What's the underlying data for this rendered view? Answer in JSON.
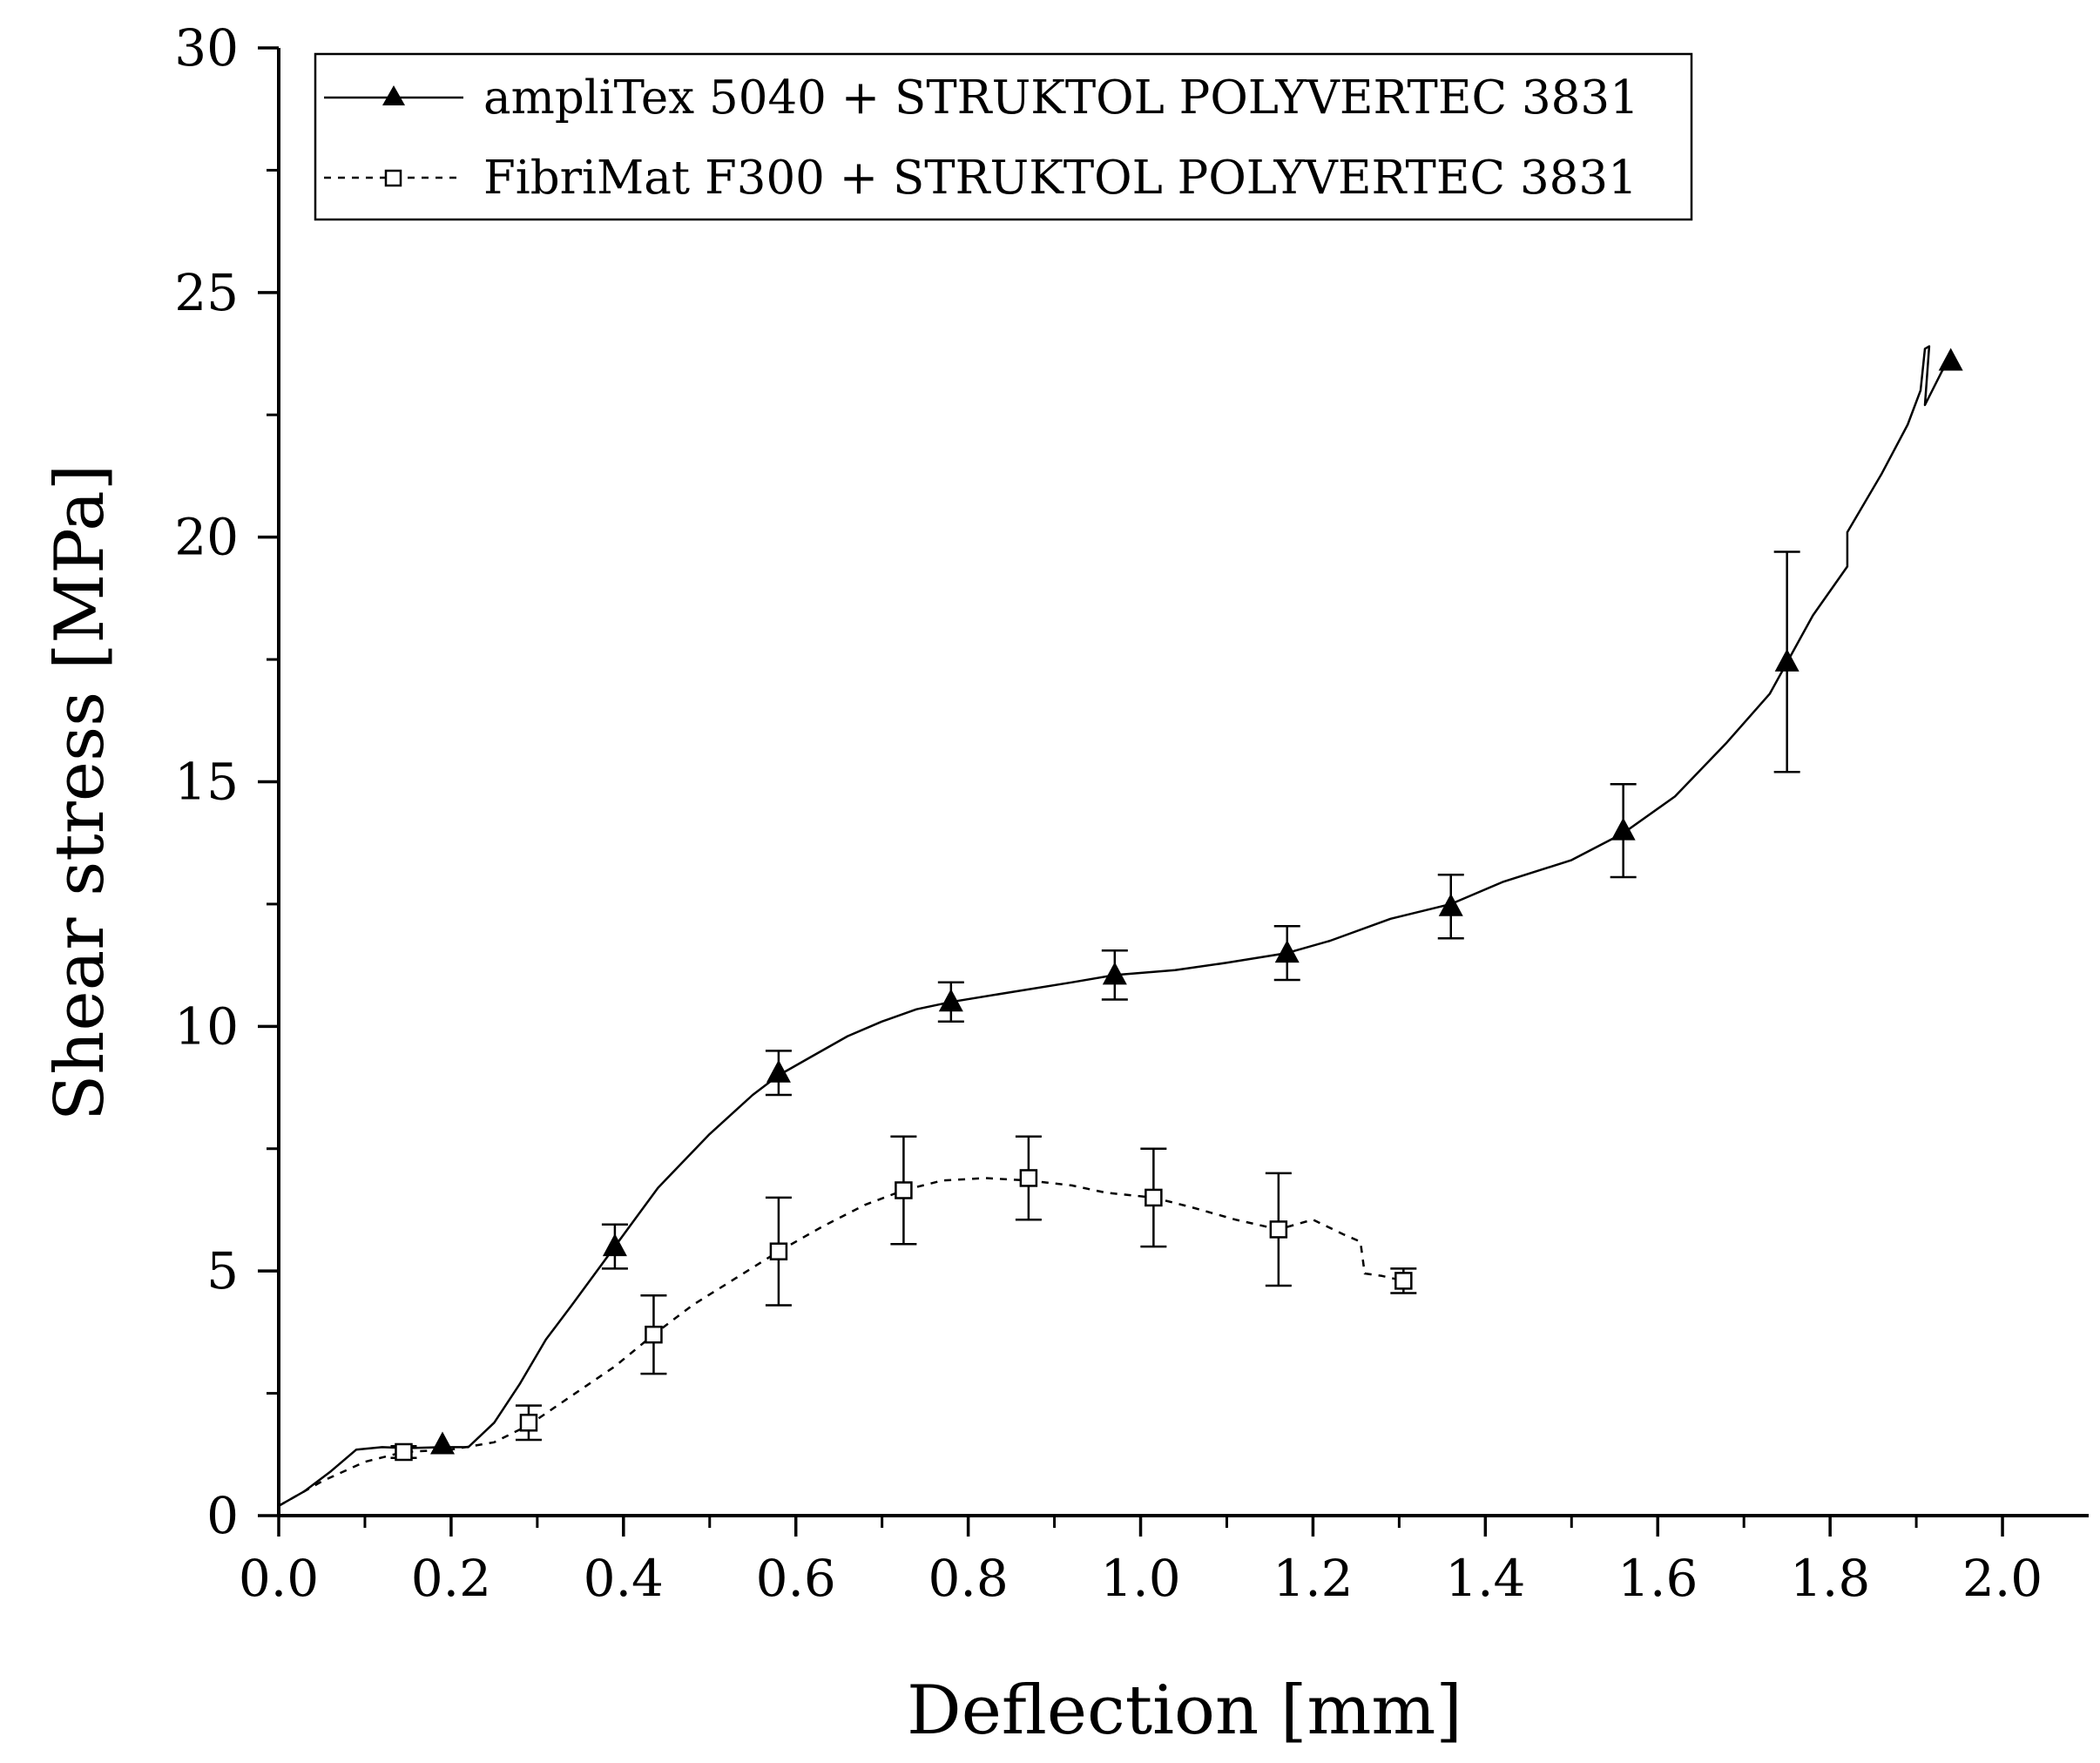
{
  "chart_data": {
    "type": "line",
    "title": "",
    "xlabel": "Deflection [mm]",
    "ylabel": "Shear stress [MPa]",
    "xlim": [
      0.0,
      2.1
    ],
    "ylim": [
      0,
      30
    ],
    "xticks": [
      "0.0",
      "0.2",
      "0.4",
      "0.6",
      "0.8",
      "1.0",
      "1.2",
      "1.4",
      "1.6",
      "1.8",
      "2.0"
    ],
    "yticks": [
      "0",
      "5",
      "10",
      "15",
      "20",
      "25",
      "30"
    ],
    "grid": false,
    "legend_position": "top-left",
    "series": [
      {
        "name": "ampliTex 5040 + STRUKTOL POLYVERTEC 3831",
        "line_style": "solid",
        "marker": "filled-triangle",
        "curve": [
          [
            0.0,
            0.2
          ],
          [
            0.03,
            0.5
          ],
          [
            0.06,
            0.9
          ],
          [
            0.09,
            1.35
          ],
          [
            0.12,
            1.4
          ],
          [
            0.15,
            1.38
          ],
          [
            0.19,
            1.4
          ],
          [
            0.22,
            1.4
          ],
          [
            0.25,
            1.9
          ],
          [
            0.28,
            2.7
          ],
          [
            0.31,
            3.6
          ],
          [
            0.34,
            4.3
          ],
          [
            0.39,
            5.5
          ],
          [
            0.44,
            6.7
          ],
          [
            0.5,
            7.8
          ],
          [
            0.55,
            8.6
          ],
          [
            0.58,
            9.0
          ],
          [
            0.62,
            9.4
          ],
          [
            0.66,
            9.8
          ],
          [
            0.7,
            10.1
          ],
          [
            0.74,
            10.35
          ],
          [
            0.78,
            10.5
          ],
          [
            0.85,
            10.7
          ],
          [
            0.92,
            10.9
          ],
          [
            0.97,
            11.05
          ],
          [
            1.04,
            11.15
          ],
          [
            1.1,
            11.3
          ],
          [
            1.17,
            11.5
          ],
          [
            1.22,
            11.75
          ],
          [
            1.29,
            12.2
          ],
          [
            1.36,
            12.5
          ],
          [
            1.42,
            12.95
          ],
          [
            1.5,
            13.4
          ],
          [
            1.56,
            13.95
          ],
          [
            1.62,
            14.7
          ],
          [
            1.68,
            15.8
          ],
          [
            1.73,
            16.8
          ],
          [
            1.78,
            18.4
          ],
          [
            1.82,
            19.4
          ],
          [
            1.82,
            20.1
          ],
          [
            1.86,
            21.3
          ],
          [
            1.89,
            22.3
          ],
          [
            1.905,
            23.0
          ],
          [
            1.91,
            23.85
          ],
          [
            1.915,
            23.9
          ],
          [
            1.91,
            22.7
          ],
          [
            1.93,
            23.4
          ],
          [
            1.94,
            23.6
          ]
        ],
        "points": [
          {
            "x": 0.19,
            "y": 1.45,
            "err": 0.0
          },
          {
            "x": 0.39,
            "y": 5.5,
            "err": 0.45
          },
          {
            "x": 0.58,
            "y": 9.05,
            "err": 0.45
          },
          {
            "x": 0.78,
            "y": 10.5,
            "err": 0.4
          },
          {
            "x": 0.97,
            "y": 11.05,
            "err": 0.5
          },
          {
            "x": 1.17,
            "y": 11.5,
            "err": 0.55
          },
          {
            "x": 1.36,
            "y": 12.45,
            "err": 0.65
          },
          {
            "x": 1.56,
            "y": 14.0,
            "err": 0.95
          },
          {
            "x": 1.75,
            "y": 17.45,
            "err": 2.25
          },
          {
            "x": 1.94,
            "y": 23.6,
            "err": 0.0
          }
        ]
      },
      {
        "name": "FibriMat F300 + STRUKTOL POLYVERTEC 3831",
        "line_style": "dashed",
        "marker": "open-square",
        "curve": [
          [
            0.0,
            0.2
          ],
          [
            0.05,
            0.7
          ],
          [
            0.1,
            1.1
          ],
          [
            0.145,
            1.3
          ],
          [
            0.2,
            1.35
          ],
          [
            0.25,
            1.5
          ],
          [
            0.29,
            1.85
          ],
          [
            0.34,
            2.45
          ],
          [
            0.39,
            3.05
          ],
          [
            0.435,
            3.7
          ],
          [
            0.48,
            4.3
          ],
          [
            0.53,
            4.85
          ],
          [
            0.58,
            5.4
          ],
          [
            0.63,
            5.9
          ],
          [
            0.68,
            6.35
          ],
          [
            0.725,
            6.65
          ],
          [
            0.77,
            6.85
          ],
          [
            0.82,
            6.9
          ],
          [
            0.87,
            6.85
          ],
          [
            0.92,
            6.75
          ],
          [
            0.96,
            6.6
          ],
          [
            1.015,
            6.5
          ],
          [
            1.06,
            6.3
          ],
          [
            1.11,
            6.05
          ],
          [
            1.16,
            5.85
          ],
          [
            1.2,
            6.05
          ],
          [
            1.235,
            5.75
          ],
          [
            1.255,
            5.6
          ],
          [
            1.26,
            4.95
          ],
          [
            1.28,
            4.9
          ],
          [
            1.305,
            4.8
          ]
        ],
        "points": [
          {
            "x": 0.145,
            "y": 1.3,
            "err": 0.12
          },
          {
            "x": 0.29,
            "y": 1.9,
            "err": 0.35
          },
          {
            "x": 0.435,
            "y": 3.7,
            "err": 0.8
          },
          {
            "x": 0.58,
            "y": 5.4,
            "err": 1.1
          },
          {
            "x": 0.725,
            "y": 6.65,
            "err": 1.1
          },
          {
            "x": 0.87,
            "y": 6.9,
            "err": 0.85
          },
          {
            "x": 1.015,
            "y": 6.5,
            "err": 1.0
          },
          {
            "x": 1.16,
            "y": 5.85,
            "err": 1.15
          },
          {
            "x": 1.305,
            "y": 4.8,
            "err": 0.25
          }
        ]
      }
    ]
  }
}
